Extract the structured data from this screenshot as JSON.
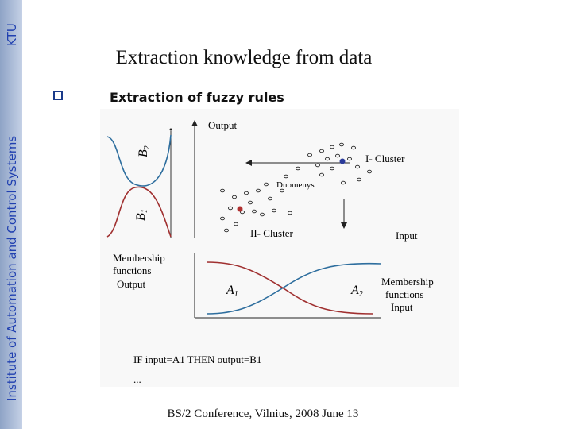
{
  "sidebar": {
    "institute": "Institute of Automation and Control Systems",
    "logo": "KTU"
  },
  "title": "Extraction knowledge from data",
  "bullet": "Extraction of fuzzy rules",
  "figure": {
    "output_axis": "Output",
    "input_axis": "Input",
    "cluster_1": "I- Cluster",
    "cluster_2": "II- Cluster",
    "data_label": "Duomenys",
    "b2": {
      "letter": "B",
      "sub": "2"
    },
    "b1": {
      "letter": "B",
      "sub": "1"
    },
    "a1": {
      "letter": "A",
      "sub": "1"
    },
    "a2": {
      "letter": "A",
      "sub": "2"
    },
    "mf_output": [
      "Membership",
      "functions",
      "Output"
    ],
    "mf_input": [
      "Membership",
      "functions",
      "Input"
    ],
    "rule": "IF input=A1 THEN output=B1",
    "ellipsis": "..."
  },
  "footer": "BS/2 Conference, Vilnius, 2008 June 13"
}
